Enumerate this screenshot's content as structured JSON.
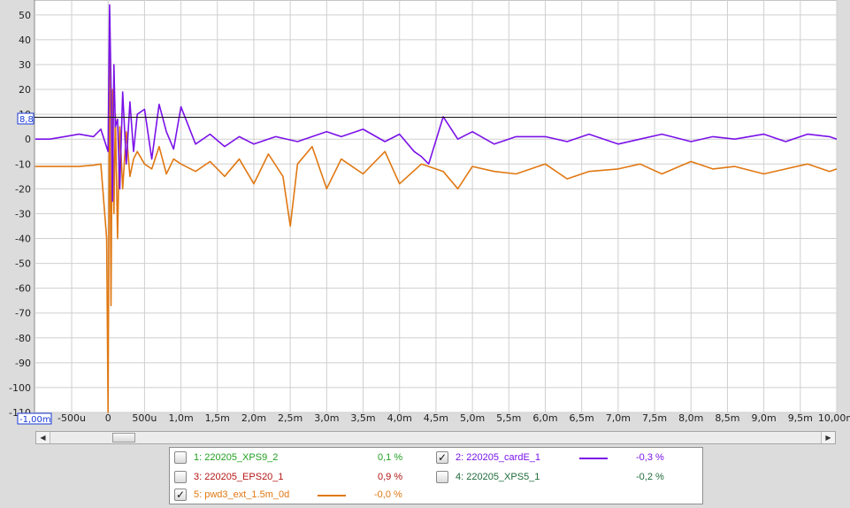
{
  "chart_data": {
    "type": "line",
    "title": "",
    "xlabel": "",
    "ylabel": "",
    "xlim": [
      -0.00101,
      0.01
    ],
    "ylim": [
      -110,
      56
    ],
    "grid": true,
    "y_ticks": [
      "50",
      "40",
      "30",
      "20",
      "10",
      "0",
      "-10",
      "-20",
      "-30",
      "-40",
      "-50",
      "-60",
      "-70",
      "-80",
      "-90",
      "-100",
      "-110"
    ],
    "x_ticks": [
      "-500u",
      "0",
      "500u",
      "1,0m",
      "1,5m",
      "2,0m",
      "2,5m",
      "3,0m",
      "3,5m",
      "4,0m",
      "4,5m",
      "5,0m",
      "5,5m",
      "6,0m",
      "6,5m",
      "7,0m",
      "7,5m",
      "8,0m",
      "8,5m",
      "9,0m",
      "9,5m",
      "10,00m"
    ],
    "x_tick_values": [
      -0.0005,
      0,
      0.0005,
      0.001,
      0.0015,
      0.002,
      0.0025,
      0.003,
      0.0035,
      0.004,
      0.0045,
      0.005,
      0.0055,
      0.006,
      0.0065,
      0.007,
      0.0075,
      0.008,
      0.0085,
      0.009,
      0.0095,
      0.01
    ],
    "x_start_readout": "-1,00m",
    "cursor_value": 8.8,
    "cursor_readout": "8,8",
    "series": [
      {
        "name": "220205_cardE_1",
        "color": "#7a12e8",
        "x": [
          -0.001,
          -0.0008,
          -0.0006,
          -0.0004,
          -0.0002,
          -0.0001,
          0.0,
          2e-05,
          4e-05,
          6e-05,
          8e-05,
          0.0001,
          0.00013,
          0.00016,
          0.0002,
          0.00025,
          0.0003,
          0.00035,
          0.0004,
          0.0005,
          0.0006,
          0.0007,
          0.0008,
          0.0009,
          0.001,
          0.0012,
          0.0014,
          0.0016,
          0.0018,
          0.002,
          0.0023,
          0.0026,
          0.003,
          0.0032,
          0.0035,
          0.0038,
          0.004,
          0.0042,
          0.0043,
          0.0044,
          0.0046,
          0.0048,
          0.005,
          0.0053,
          0.0056,
          0.006,
          0.0063,
          0.0066,
          0.007,
          0.0073,
          0.0076,
          0.008,
          0.0083,
          0.0086,
          0.009,
          0.0093,
          0.0096,
          0.0099,
          0.01
        ],
        "y": [
          0,
          0,
          1,
          2,
          1,
          4,
          -5,
          54,
          22,
          -25,
          30,
          5,
          8,
          -20,
          19,
          -10,
          15,
          -5,
          10,
          12,
          -8,
          14,
          3,
          -4,
          13,
          -2,
          2,
          -3,
          1,
          -2,
          1,
          -1,
          3,
          1,
          4,
          -1,
          2,
          -5,
          -7,
          -10,
          9,
          0,
          3,
          -2,
          1,
          1,
          -1,
          2,
          -2,
          0,
          2,
          -1,
          1,
          0,
          2,
          -1,
          2,
          1,
          0
        ]
      },
      {
        "name": "pwd3_ext_1.5m_0d",
        "color": "#e07812",
        "x": [
          -0.001,
          -0.0008,
          -0.0006,
          -0.0004,
          -0.0002,
          -0.0001,
          -2e-05,
          0.0,
          2e-05,
          4e-05,
          6e-05,
          8e-05,
          0.0001,
          0.00013,
          0.00016,
          0.0002,
          0.00025,
          0.0003,
          0.00035,
          0.0004,
          0.0005,
          0.0006,
          0.0007,
          0.0008,
          0.0009,
          0.001,
          0.0012,
          0.0014,
          0.0016,
          0.0018,
          0.002,
          0.0022,
          0.0024,
          0.0025,
          0.0026,
          0.0028,
          0.003,
          0.0032,
          0.0035,
          0.0038,
          0.004,
          0.0043,
          0.0046,
          0.0048,
          0.005,
          0.0053,
          0.0056,
          0.006,
          0.0063,
          0.0066,
          0.007,
          0.0073,
          0.0076,
          0.008,
          0.0083,
          0.0086,
          0.009,
          0.0093,
          0.0096,
          0.0099,
          0.01
        ],
        "y": [
          -11,
          -11,
          -11,
          -11,
          -10.5,
          -10,
          -40,
          -110,
          35,
          -67,
          20,
          -30,
          10,
          -40,
          5,
          -20,
          3,
          -15,
          -8,
          -5,
          -10,
          -12,
          -3,
          -14,
          -8,
          -10,
          -13,
          -9,
          -15,
          -8,
          -18,
          -6,
          -15,
          -35,
          -10,
          -3,
          -20,
          -8,
          -14,
          -5,
          -18,
          -10,
          -13,
          -20,
          -11,
          -13,
          -14,
          -10,
          -16,
          -13,
          -12,
          -10,
          -14,
          -9,
          -12,
          -11,
          -14,
          -12,
          -10,
          -13,
          -12
        ]
      }
    ]
  },
  "scrollbar": {
    "left_icon": "◀",
    "right_icon": "▶"
  },
  "legend": [
    {
      "label": "1: 220205_XPS9_2",
      "pct": "0,1 %",
      "color": "#22a022",
      "checked": false,
      "check_glyph": ""
    },
    {
      "label": "2: 220205_cardE_1",
      "pct": "-0,3 %",
      "color": "#7a12e8",
      "checked": true,
      "check_glyph": "✓"
    },
    {
      "label": "3: 220205_EPS20_1",
      "pct": "0,9 %",
      "color": "#b51616",
      "checked": false,
      "check_glyph": ""
    },
    {
      "label": "4: 220205_XPS5_1",
      "pct": "-0,2 %",
      "color": "#1f6b3a",
      "checked": false,
      "check_glyph": ""
    },
    {
      "label": "5: pwd3_ext_1.5m_0d",
      "pct": "-0,0 %",
      "color": "#e07812",
      "checked": true,
      "check_glyph": "✓"
    }
  ]
}
